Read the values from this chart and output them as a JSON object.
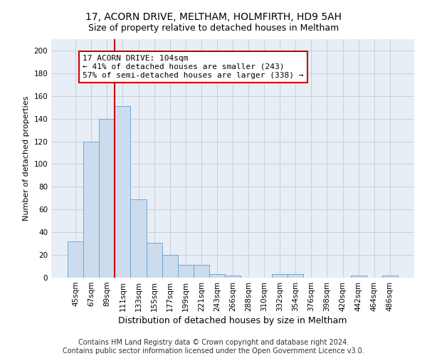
{
  "title": "17, ACORN DRIVE, MELTHAM, HOLMFIRTH, HD9 5AH",
  "subtitle": "Size of property relative to detached houses in Meltham",
  "xlabel": "Distribution of detached houses by size in Meltham",
  "ylabel": "Number of detached properties",
  "bar_labels": [
    "45sqm",
    "67sqm",
    "89sqm",
    "111sqm",
    "133sqm",
    "155sqm",
    "177sqm",
    "199sqm",
    "221sqm",
    "243sqm",
    "266sqm",
    "288sqm",
    "310sqm",
    "332sqm",
    "354sqm",
    "376sqm",
    "398sqm",
    "420sqm",
    "442sqm",
    "464sqm",
    "486sqm"
  ],
  "bar_values": [
    32,
    120,
    140,
    151,
    69,
    31,
    20,
    11,
    11,
    3,
    2,
    0,
    0,
    3,
    3,
    0,
    0,
    0,
    2,
    0,
    2
  ],
  "bar_color": "#ccdcee",
  "bar_edge_color": "#6aaad4",
  "vline_x": 3.0,
  "vline_color": "#cc0000",
  "annotation_text": "17 ACORN DRIVE: 104sqm\n← 41% of detached houses are smaller (243)\n57% of semi-detached houses are larger (338) →",
  "annotation_box_color": "white",
  "annotation_box_edge": "#cc0000",
  "ylim": [
    0,
    210
  ],
  "yticks": [
    0,
    20,
    40,
    60,
    80,
    100,
    120,
    140,
    160,
    180,
    200
  ],
  "grid_color": "#c8cfd8",
  "bg_color": "#e8eef6",
  "footer": "Contains HM Land Registry data © Crown copyright and database right 2024.\nContains public sector information licensed under the Open Government Licence v3.0.",
  "title_fontsize": 10,
  "subtitle_fontsize": 9,
  "xlabel_fontsize": 9,
  "ylabel_fontsize": 8,
  "tick_fontsize": 7.5,
  "annotation_fontsize": 8,
  "footer_fontsize": 7
}
